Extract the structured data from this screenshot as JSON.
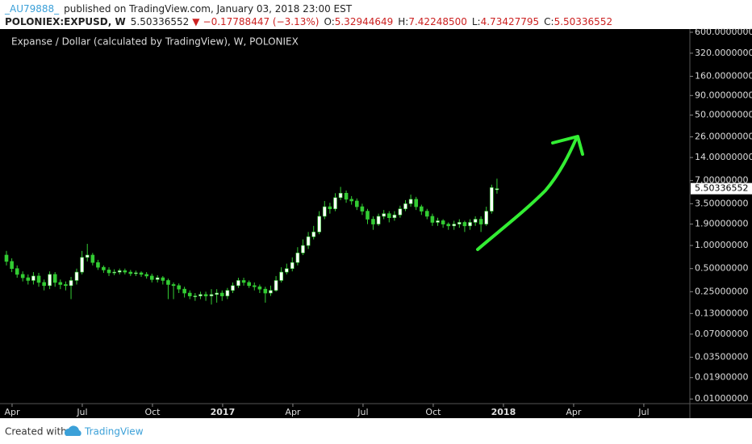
{
  "header": {
    "author": "_AU79888_",
    "published": "published on TradingView.com, January 03, 2018 23:00 EST",
    "symbol": "POLONIEX:EXPUSD, W",
    "close": "5.50336552",
    "change": "−0.17788447 (−3.13%)",
    "o_label": "O:",
    "open": "5.32944649",
    "h_label": "H:",
    "high": "7.42248500",
    "l_label": "L:",
    "low": "4.73427795",
    "c_label": "C:"
  },
  "footer": {
    "created": "Created with",
    "brand": "TradingView"
  },
  "chart_data": {
    "type": "candlestick",
    "title": "Expanse / Dollar (calculated by TradingView), W, POLONIEX",
    "log_scale": true,
    "grid": false,
    "up_color": "#ffffff",
    "down_color": "#33cc33",
    "wick_color": "#33cc33",
    "xlim": [
      2016.207,
      2018.664
    ],
    "ylim": [
      0.0087,
      710
    ],
    "xticks": [
      {
        "value": 2016.25,
        "label": "Apr"
      },
      {
        "value": 2016.5,
        "label": "Jul"
      },
      {
        "value": 2016.75,
        "label": "Oct"
      },
      2017,
      {
        "value": 2017.25,
        "label": "Apr"
      },
      {
        "value": 2017.5,
        "label": "Jul"
      },
      {
        "value": 2017.75,
        "label": "Oct"
      },
      2018,
      {
        "value": 2018.25,
        "label": "Apr"
      },
      {
        "value": 2018.5,
        "label": "Jul"
      }
    ],
    "yticks": [
      {
        "value": 600,
        "label": "600.00000000"
      },
      {
        "value": 320,
        "label": "320.00000000"
      },
      {
        "value": 160,
        "label": "160.00000000"
      },
      {
        "value": 90,
        "label": "90.00000000"
      },
      {
        "value": 50,
        "label": "50.00000000"
      },
      {
        "value": 26,
        "label": "26.00000000"
      },
      {
        "value": 14,
        "label": "14.00000000"
      },
      {
        "value": 7,
        "label": "7.00000000"
      },
      {
        "value": 3.5,
        "label": "3.50000000"
      },
      {
        "value": 1.9,
        "label": "1.90000000"
      },
      {
        "value": 1,
        "label": "1.00000000"
      },
      {
        "value": 0.5,
        "label": "0.50000000"
      },
      {
        "value": 0.25,
        "label": "0.25000000"
      },
      {
        "value": 0.13,
        "label": "0.13000000"
      },
      {
        "value": 0.07,
        "label": "0.07000000"
      },
      {
        "value": 0.035,
        "label": "0.03500000"
      },
      {
        "value": 0.019,
        "label": "0.01900000"
      },
      {
        "value": 0.01,
        "label": "0.01000000"
      }
    ],
    "x": [
      2016.23,
      2016.249,
      2016.268,
      2016.288,
      2016.307,
      2016.326,
      2016.345,
      2016.364,
      2016.384,
      2016.403,
      2016.422,
      2016.441,
      2016.46,
      2016.48,
      2016.499,
      2016.518,
      2016.537,
      2016.556,
      2016.576,
      2016.595,
      2016.614,
      2016.633,
      2016.652,
      2016.672,
      2016.691,
      2016.71,
      2016.729,
      2016.748,
      2016.768,
      2016.787,
      2016.806,
      2016.825,
      2016.844,
      2016.864,
      2016.883,
      2016.902,
      2016.921,
      2016.94,
      2016.96,
      2016.979,
      2016.998,
      2017.017,
      2017.036,
      2017.056,
      2017.075,
      2017.094,
      2017.113,
      2017.132,
      2017.152,
      2017.171,
      2017.19,
      2017.209,
      2017.228,
      2017.248,
      2017.267,
      2017.286,
      2017.305,
      2017.324,
      2017.344,
      2017.363,
      2017.382,
      2017.401,
      2017.42,
      2017.44,
      2017.459,
      2017.478,
      2017.497,
      2017.516,
      2017.536,
      2017.555,
      2017.574,
      2017.593,
      2017.612,
      2017.632,
      2017.651,
      2017.67,
      2017.689,
      2017.708,
      2017.728,
      2017.747,
      2017.766,
      2017.785,
      2017.804,
      2017.824,
      2017.843,
      2017.862,
      2017.881,
      2017.9,
      2017.92,
      2017.939,
      2017.958,
      2017.977
    ],
    "open": [
      0.75,
      0.62,
      0.5,
      0.42,
      0.38,
      0.35,
      0.4,
      0.33,
      0.3,
      0.42,
      0.33,
      0.31,
      0.3,
      0.35,
      0.45,
      0.7,
      0.75,
      0.6,
      0.52,
      0.48,
      0.44,
      0.45,
      0.47,
      0.45,
      0.43,
      0.44,
      0.42,
      0.4,
      0.36,
      0.38,
      0.35,
      0.31,
      0.3,
      0.27,
      0.24,
      0.22,
      0.22,
      0.23,
      0.22,
      0.23,
      0.24,
      0.22,
      0.26,
      0.3,
      0.35,
      0.33,
      0.3,
      0.29,
      0.27,
      0.24,
      0.26,
      0.35,
      0.45,
      0.5,
      0.6,
      0.8,
      1.0,
      1.3,
      1.5,
      2.4,
      3.2,
      3.0,
      4.2,
      4.8,
      4.0,
      3.8,
      3.2,
      2.8,
      2.2,
      1.9,
      2.4,
      2.6,
      2.3,
      2.5,
      3.0,
      3.5,
      4.0,
      3.2,
      2.8,
      2.4,
      2.0,
      2.1,
      1.9,
      1.8,
      1.9,
      2.0,
      1.8,
      2.0,
      2.2,
      1.9,
      2.8,
      5.32944649
    ],
    "high": [
      0.85,
      0.68,
      0.55,
      0.46,
      0.42,
      0.45,
      0.44,
      0.36,
      0.46,
      0.45,
      0.36,
      0.34,
      0.39,
      0.5,
      0.85,
      1.05,
      0.8,
      0.65,
      0.55,
      0.52,
      0.49,
      0.5,
      0.5,
      0.48,
      0.47,
      0.46,
      0.45,
      0.43,
      0.41,
      0.4,
      0.37,
      0.33,
      0.32,
      0.29,
      0.26,
      0.24,
      0.25,
      0.25,
      0.27,
      0.27,
      0.26,
      0.28,
      0.33,
      0.38,
      0.38,
      0.35,
      0.33,
      0.31,
      0.29,
      0.3,
      0.4,
      0.52,
      0.58,
      0.7,
      0.95,
      1.2,
      1.5,
      1.8,
      2.8,
      3.8,
      3.6,
      4.8,
      5.8,
      5.2,
      4.4,
      4.1,
      3.5,
      3.0,
      2.4,
      2.6,
      2.9,
      2.8,
      2.8,
      3.3,
      3.9,
      4.6,
      4.3,
      3.4,
      3.0,
      2.6,
      2.3,
      2.2,
      2.0,
      2.1,
      2.2,
      2.1,
      2.2,
      2.4,
      2.4,
      3.2,
      6.2,
      7.422485
    ],
    "low": [
      0.55,
      0.45,
      0.38,
      0.34,
      0.31,
      0.31,
      0.29,
      0.26,
      0.27,
      0.29,
      0.27,
      0.26,
      0.2,
      0.31,
      0.42,
      0.62,
      0.55,
      0.48,
      0.44,
      0.4,
      0.41,
      0.42,
      0.42,
      0.4,
      0.4,
      0.39,
      0.37,
      0.33,
      0.33,
      0.31,
      0.2,
      0.2,
      0.24,
      0.21,
      0.2,
      0.19,
      0.2,
      0.19,
      0.17,
      0.18,
      0.19,
      0.2,
      0.24,
      0.28,
      0.3,
      0.28,
      0.26,
      0.24,
      0.18,
      0.22,
      0.25,
      0.33,
      0.42,
      0.46,
      0.55,
      0.75,
      0.9,
      1.2,
      1.4,
      2.2,
      2.6,
      2.8,
      3.9,
      3.6,
      3.4,
      2.9,
      2.5,
      1.9,
      1.6,
      1.8,
      2.2,
      2.0,
      2.1,
      2.3,
      2.8,
      3.2,
      2.9,
      2.5,
      2.2,
      1.8,
      1.8,
      1.7,
      1.6,
      1.6,
      1.7,
      1.5,
      1.6,
      1.8,
      1.5,
      1.8,
      2.6,
      4.73427795
    ],
    "close": [
      0.62,
      0.5,
      0.42,
      0.38,
      0.35,
      0.4,
      0.33,
      0.3,
      0.42,
      0.33,
      0.31,
      0.3,
      0.35,
      0.45,
      0.7,
      0.75,
      0.6,
      0.52,
      0.48,
      0.44,
      0.45,
      0.47,
      0.45,
      0.43,
      0.44,
      0.42,
      0.4,
      0.36,
      0.38,
      0.35,
      0.31,
      0.3,
      0.27,
      0.24,
      0.22,
      0.22,
      0.23,
      0.22,
      0.23,
      0.24,
      0.22,
      0.26,
      0.3,
      0.35,
      0.33,
      0.3,
      0.29,
      0.27,
      0.24,
      0.26,
      0.35,
      0.45,
      0.5,
      0.6,
      0.8,
      1.0,
      1.3,
      1.5,
      2.4,
      3.2,
      3.0,
      4.2,
      4.8,
      4.0,
      3.8,
      3.2,
      2.8,
      2.2,
      1.9,
      2.4,
      2.6,
      2.3,
      2.5,
      3.0,
      3.5,
      4.0,
      3.2,
      2.8,
      2.4,
      2.0,
      2.1,
      1.9,
      1.8,
      1.9,
      2.0,
      1.8,
      2.0,
      2.2,
      1.9,
      2.8,
      5.68,
      5.50336552
    ]
  }
}
